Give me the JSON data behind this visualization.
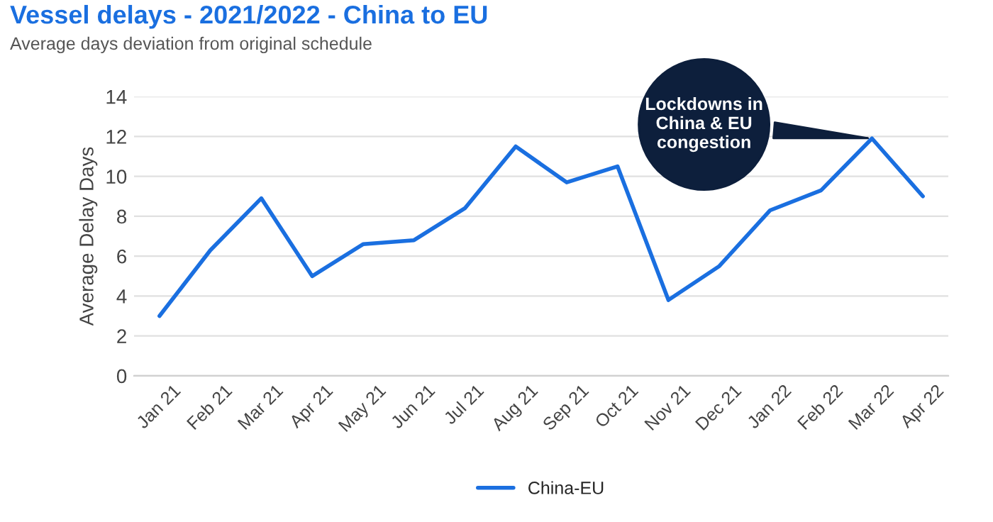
{
  "chart_data": {
    "type": "line",
    "title": "Vessel delays - 2021/2022 - China to EU",
    "subtitle": "Average days deviation from original schedule",
    "ylabel": "Average Delay Days",
    "categories": [
      "Jan 21",
      "Feb 21",
      "Mar 21",
      "Apr 21",
      "May 21",
      "Jun 21",
      "Jul 21",
      "Aug 21",
      "Sep 21",
      "Oct 21",
      "Nov 21",
      "Dec 21",
      "Jan 22",
      "Feb 22",
      "Mar 22",
      "Apr 22"
    ],
    "series": [
      {
        "name": "China-EU",
        "color": "#1a6fe0",
        "values": [
          3.0,
          6.3,
          8.9,
          5.0,
          6.6,
          6.8,
          8.4,
          11.5,
          9.7,
          10.5,
          3.8,
          5.5,
          8.3,
          9.3,
          11.9,
          9.0
        ]
      }
    ],
    "ylim": [
      0,
      14
    ],
    "yticks": [
      0,
      2,
      4,
      6,
      8,
      10,
      12,
      14
    ],
    "grid": "y",
    "legend": "bottom",
    "marker": "none",
    "line_style": "solid",
    "annotations": [
      {
        "text": "Lockdowns in\nChina & EU\ncongestion",
        "x": "Mar 22",
        "y": 11.9
      }
    ]
  }
}
